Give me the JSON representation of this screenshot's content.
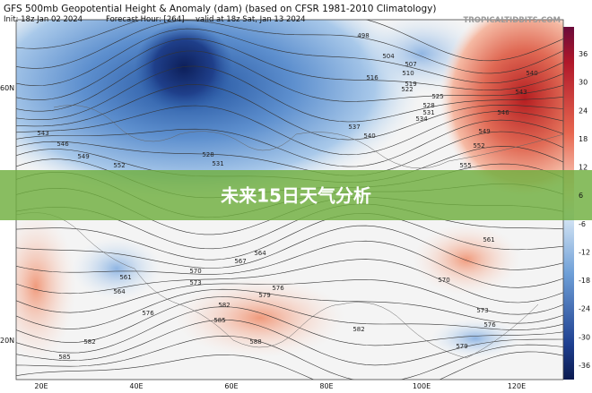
{
  "header": {
    "title": "GFS 500mb Geopotential Height & Anomaly (dam) (based on CFSR 1981-2010 Climatology)",
    "init": "Init: 18z Jan 02 2024",
    "forecast": "Forecast Hour: [264]",
    "valid": "valid at 18z Sat, Jan 13 2024",
    "watermark": "TROPICALTIDBITS.COM"
  },
  "banner": {
    "title": "未来15日天气分析"
  },
  "colorbar": {
    "labels": [
      "36",
      "30",
      "24",
      "18",
      "12",
      "6",
      "-6",
      "-12",
      "-18",
      "-24",
      "-30",
      "-36"
    ]
  },
  "latitudes": [
    "60N",
    "20N"
  ],
  "longitudes": [
    "20E",
    "40E",
    "60E",
    "80E",
    "100E",
    "120E"
  ],
  "contour_labels": [
    "498",
    "504",
    "507",
    "510",
    "516",
    "519",
    "522",
    "525",
    "528",
    "531",
    "534",
    "537",
    "540",
    "543",
    "546",
    "549",
    "552",
    "531",
    "528",
    "540",
    "543",
    "546",
    "549",
    "552",
    "555",
    "561",
    "564",
    "567",
    "570",
    "573",
    "576",
    "579",
    "582",
    "585",
    "588",
    "582",
    "585",
    "570",
    "573",
    "576",
    "579",
    "561",
    "564",
    "576",
    "582"
  ]
}
